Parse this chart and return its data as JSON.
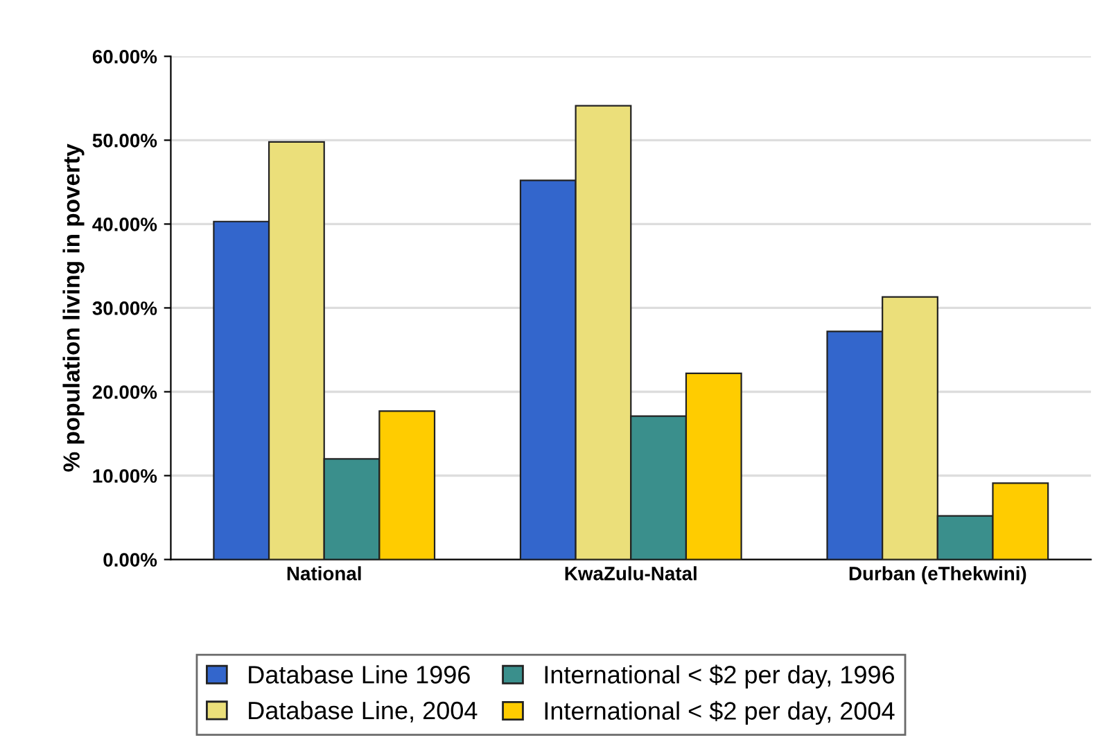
{
  "chart_data": {
    "type": "bar",
    "ylabel": "% population living in poverty",
    "categories": [
      "National",
      "KwaZulu-Natal",
      "Durban (eThekwini)"
    ],
    "series": [
      {
        "name": "Database Line 1996",
        "color": "#3366cc",
        "values": [
          40.3,
          45.2,
          27.2
        ]
      },
      {
        "name": "Database Line, 2004",
        "color": "#ebdf7a",
        "values": [
          49.8,
          54.1,
          31.3
        ]
      },
      {
        "name": "International < $2 per day, 1996",
        "color": "#3a8f8c",
        "values": [
          12.0,
          17.1,
          5.2
        ]
      },
      {
        "name": "International < $2 per day, 2004",
        "color": "#ffcc00",
        "values": [
          17.7,
          22.2,
          9.1
        ]
      }
    ],
    "ylim": [
      0,
      60
    ],
    "yticks": [
      {
        "value": 0,
        "label": "0.00%"
      },
      {
        "value": 10,
        "label": "10.00%"
      },
      {
        "value": 20,
        "label": "20.00%"
      },
      {
        "value": 30,
        "label": "30.00%"
      },
      {
        "value": 40,
        "label": "40.00%"
      },
      {
        "value": 50,
        "label": "50.00%"
      },
      {
        "value": 60,
        "label": "60.00%"
      }
    ],
    "grid": "y",
    "legend": "bottom"
  }
}
